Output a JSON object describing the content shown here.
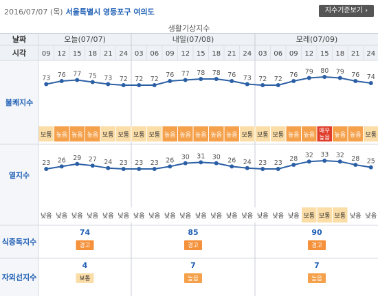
{
  "header": {
    "date": "2016/07/07 (목)",
    "location": "서울특별시 영등포구 여의도",
    "button_label": "지수기준보기 ›"
  },
  "caption": "생활기상지수",
  "labels": {
    "date_col": "날짜",
    "time_col": "시각",
    "discomfort": "불쾌지수",
    "heat": "열지수",
    "food": "식중독지수",
    "uv": "자외선지수"
  },
  "days": [
    "오늘(07/07)",
    "내일(07/08)",
    "모레(07/09)"
  ],
  "hours": [
    "09",
    "12",
    "15",
    "18",
    "21",
    "24",
    "03",
    "06",
    "09",
    "12",
    "15",
    "18",
    "21",
    "24",
    "03",
    "06",
    "09",
    "12",
    "15",
    "18",
    "21",
    "24"
  ],
  "chart_data": [
    {
      "type": "line",
      "name": "불쾌지수",
      "values": [
        73,
        76,
        77,
        75,
        73,
        72,
        72,
        72,
        76,
        77,
        78,
        78,
        76,
        73,
        72,
        72,
        76,
        79,
        80,
        79,
        76,
        74
      ],
      "levels": [
        "보통",
        "높음",
        "높음",
        "높음",
        "보통",
        "보통",
        "보통",
        "보통",
        "높음",
        "높음",
        "높음",
        "높음",
        "높음",
        "보통",
        "보통",
        "보통",
        "높음",
        "높음",
        "매우높음",
        "높음",
        "높음",
        "보통"
      ]
    },
    {
      "type": "line",
      "name": "열지수",
      "values": [
        23,
        26,
        29,
        27,
        24,
        23,
        23,
        23,
        26,
        30,
        31,
        30,
        26,
        24,
        23,
        23,
        28,
        32,
        33,
        32,
        28,
        25
      ],
      "levels": [
        "낮음",
        "낮음",
        "낮음",
        "낮음",
        "낮음",
        "낮음",
        "낮음",
        "낮음",
        "낮음",
        "낮음",
        "낮음",
        "낮음",
        "낮음",
        "낮음",
        "낮음",
        "낮음",
        "낮음",
        "보통",
        "보통",
        "보통",
        "낮음",
        "낮음"
      ]
    }
  ],
  "daily": {
    "food": [
      {
        "value": "74",
        "level": "경고"
      },
      {
        "value": "85",
        "level": "경고"
      },
      {
        "value": "90",
        "level": "경고"
      }
    ],
    "uv": [
      {
        "value": "4",
        "level": "보통"
      },
      {
        "value": "7",
        "level": "높음"
      },
      {
        "value": "7",
        "level": "높음"
      }
    ]
  },
  "colors": {
    "line": "#2b5fa5",
    "normal": "#fbdda7",
    "high": "#f5a04a",
    "very_high": "#e03c2a",
    "low": "#ffffff",
    "warning": "#f5913b"
  }
}
